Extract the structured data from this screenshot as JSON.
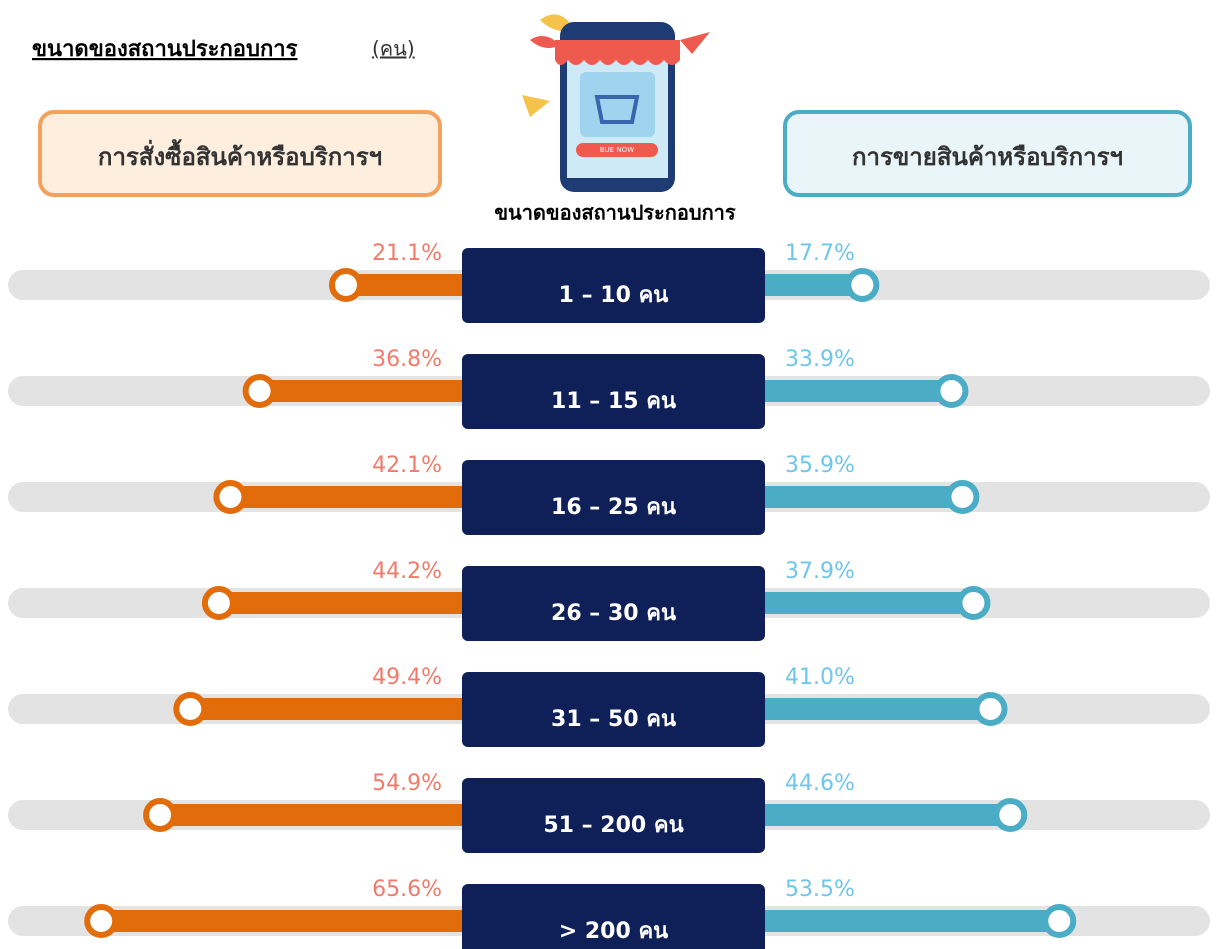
{
  "chart_data": {
    "type": "butterfly",
    "title": "ขนาดของสถานประกอบการ",
    "title_unit": "(คน)",
    "subtitle": "ขนาดของสถานประกอบการ",
    "illustration_label": "BUE NOW",
    "categories": [
      "1 – 10 คน",
      "11 – 15 คน",
      "16 – 25 คน",
      "26 – 30 คน",
      "31 – 50 คน",
      "51 – 200 คน",
      "> 200 คน"
    ],
    "xlim": [
      0,
      80
    ],
    "series": [
      {
        "name": "การสั่งซื้อสินค้าหรือบริการฯ",
        "side": "left",
        "color": "#e36c0a",
        "label_color": "#f07b6b",
        "box_fill": "#fdeede",
        "box_stroke": "#f4a15d",
        "values": [
          21.1,
          36.8,
          42.1,
          44.2,
          49.4,
          54.9,
          65.6
        ],
        "value_labels": [
          "21.1%",
          "36.8%",
          "42.1%",
          "44.2%",
          "49.4%",
          "54.9%",
          "65.6%"
        ]
      },
      {
        "name": "การขายสินค้าหรือบริการฯ",
        "side": "right",
        "color": "#4bacc6",
        "label_color": "#6ec6ea",
        "box_fill": "#e9f5f9",
        "box_stroke": "#4bacc6",
        "values": [
          17.7,
          33.9,
          35.9,
          37.9,
          41.0,
          44.6,
          53.5
        ],
        "value_labels": [
          "17.7%",
          "33.9%",
          "35.9%",
          "37.9%",
          "41.0%",
          "44.6%",
          "53.5%"
        ]
      }
    ]
  }
}
